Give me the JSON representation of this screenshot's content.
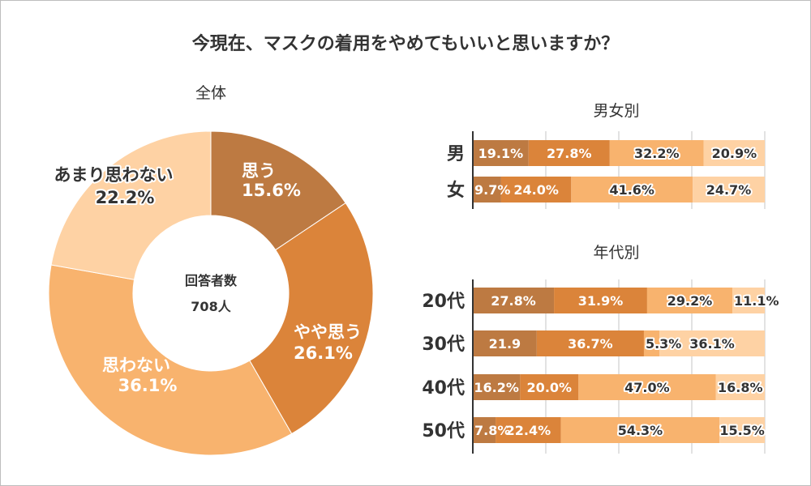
{
  "title": "今現在、マスクの着用をやめてもいいと思いますか？",
  "colors": {
    "c1": "#bd7a42",
    "c2": "#db843a",
    "c3": "#f8b36e",
    "c4": "#fed2a4",
    "text_light": "#ffffff",
    "text_dark": "#333333",
    "grid": "#cfcfcf",
    "axis": "#333333"
  },
  "chart_data": [
    {
      "type": "pie",
      "subtitle": "全体",
      "center_label": "回答者数",
      "center_value": "708人",
      "slices": [
        {
          "label": "思う",
          "value": 15.6,
          "value_text": "15.6%",
          "color": "#bd7a42"
        },
        {
          "label": "やや思う",
          "value": 26.1,
          "value_text": "26.1%",
          "color": "#db843a"
        },
        {
          "label": "思わない",
          "value": 36.1,
          "value_text": "36.1%",
          "color": "#f8b36e"
        },
        {
          "label": "あまり思わない",
          "value": 22.2,
          "value_text": "22.2%",
          "color": "#fed2a4"
        }
      ]
    },
    {
      "type": "bar",
      "subtitle": "男女別",
      "stacked": true,
      "orientation": "horizontal",
      "categories": [
        "男",
        "女"
      ],
      "series": [
        {
          "name": "思う",
          "values": [
            19.1,
            9.7
          ],
          "labels": [
            "19.1%",
            "9.7%"
          ],
          "color": "#bd7a42"
        },
        {
          "name": "やや思う",
          "values": [
            27.8,
            24.0
          ],
          "labels": [
            "27.8%",
            "24.0%"
          ],
          "color": "#db843a"
        },
        {
          "name": "思わない",
          "values": [
            32.2,
            41.6
          ],
          "labels": [
            "32.2%",
            "41.6%"
          ],
          "color": "#f8b36e"
        },
        {
          "name": "あまり思わない",
          "values": [
            20.9,
            24.7
          ],
          "labels": [
            "20.9%",
            "24.7%"
          ],
          "color": "#fed2a4"
        }
      ],
      "xlim": [
        0,
        100
      ]
    },
    {
      "type": "bar",
      "subtitle": "年代別",
      "stacked": true,
      "orientation": "horizontal",
      "categories": [
        "20代",
        "30代",
        "40代",
        "50代"
      ],
      "series": [
        {
          "name": "思う",
          "values": [
            27.8,
            21.9,
            16.2,
            7.8
          ],
          "labels": [
            "27.8%",
            "21.9",
            "16.2%",
            "7.8%"
          ],
          "color": "#bd7a42"
        },
        {
          "name": "やや思う",
          "values": [
            31.9,
            36.7,
            20.0,
            22.4
          ],
          "labels": [
            "31.9%",
            "36.7%",
            "20.0%",
            "22.4%"
          ],
          "color": "#db843a"
        },
        {
          "name": "思わない",
          "values": [
            29.2,
            5.3,
            47.0,
            54.3
          ],
          "labels": [
            "29.2%",
            "5.3%",
            "47.0%",
            "54.3%"
          ],
          "color": "#f8b36e"
        },
        {
          "name": "あまり思わない",
          "values": [
            11.1,
            36.1,
            16.8,
            15.5
          ],
          "labels": [
            "11.1%",
            "36.1%",
            "16.8%",
            "15.5%"
          ],
          "color": "#fed2a4"
        }
      ],
      "xlim": [
        0,
        100
      ]
    }
  ]
}
